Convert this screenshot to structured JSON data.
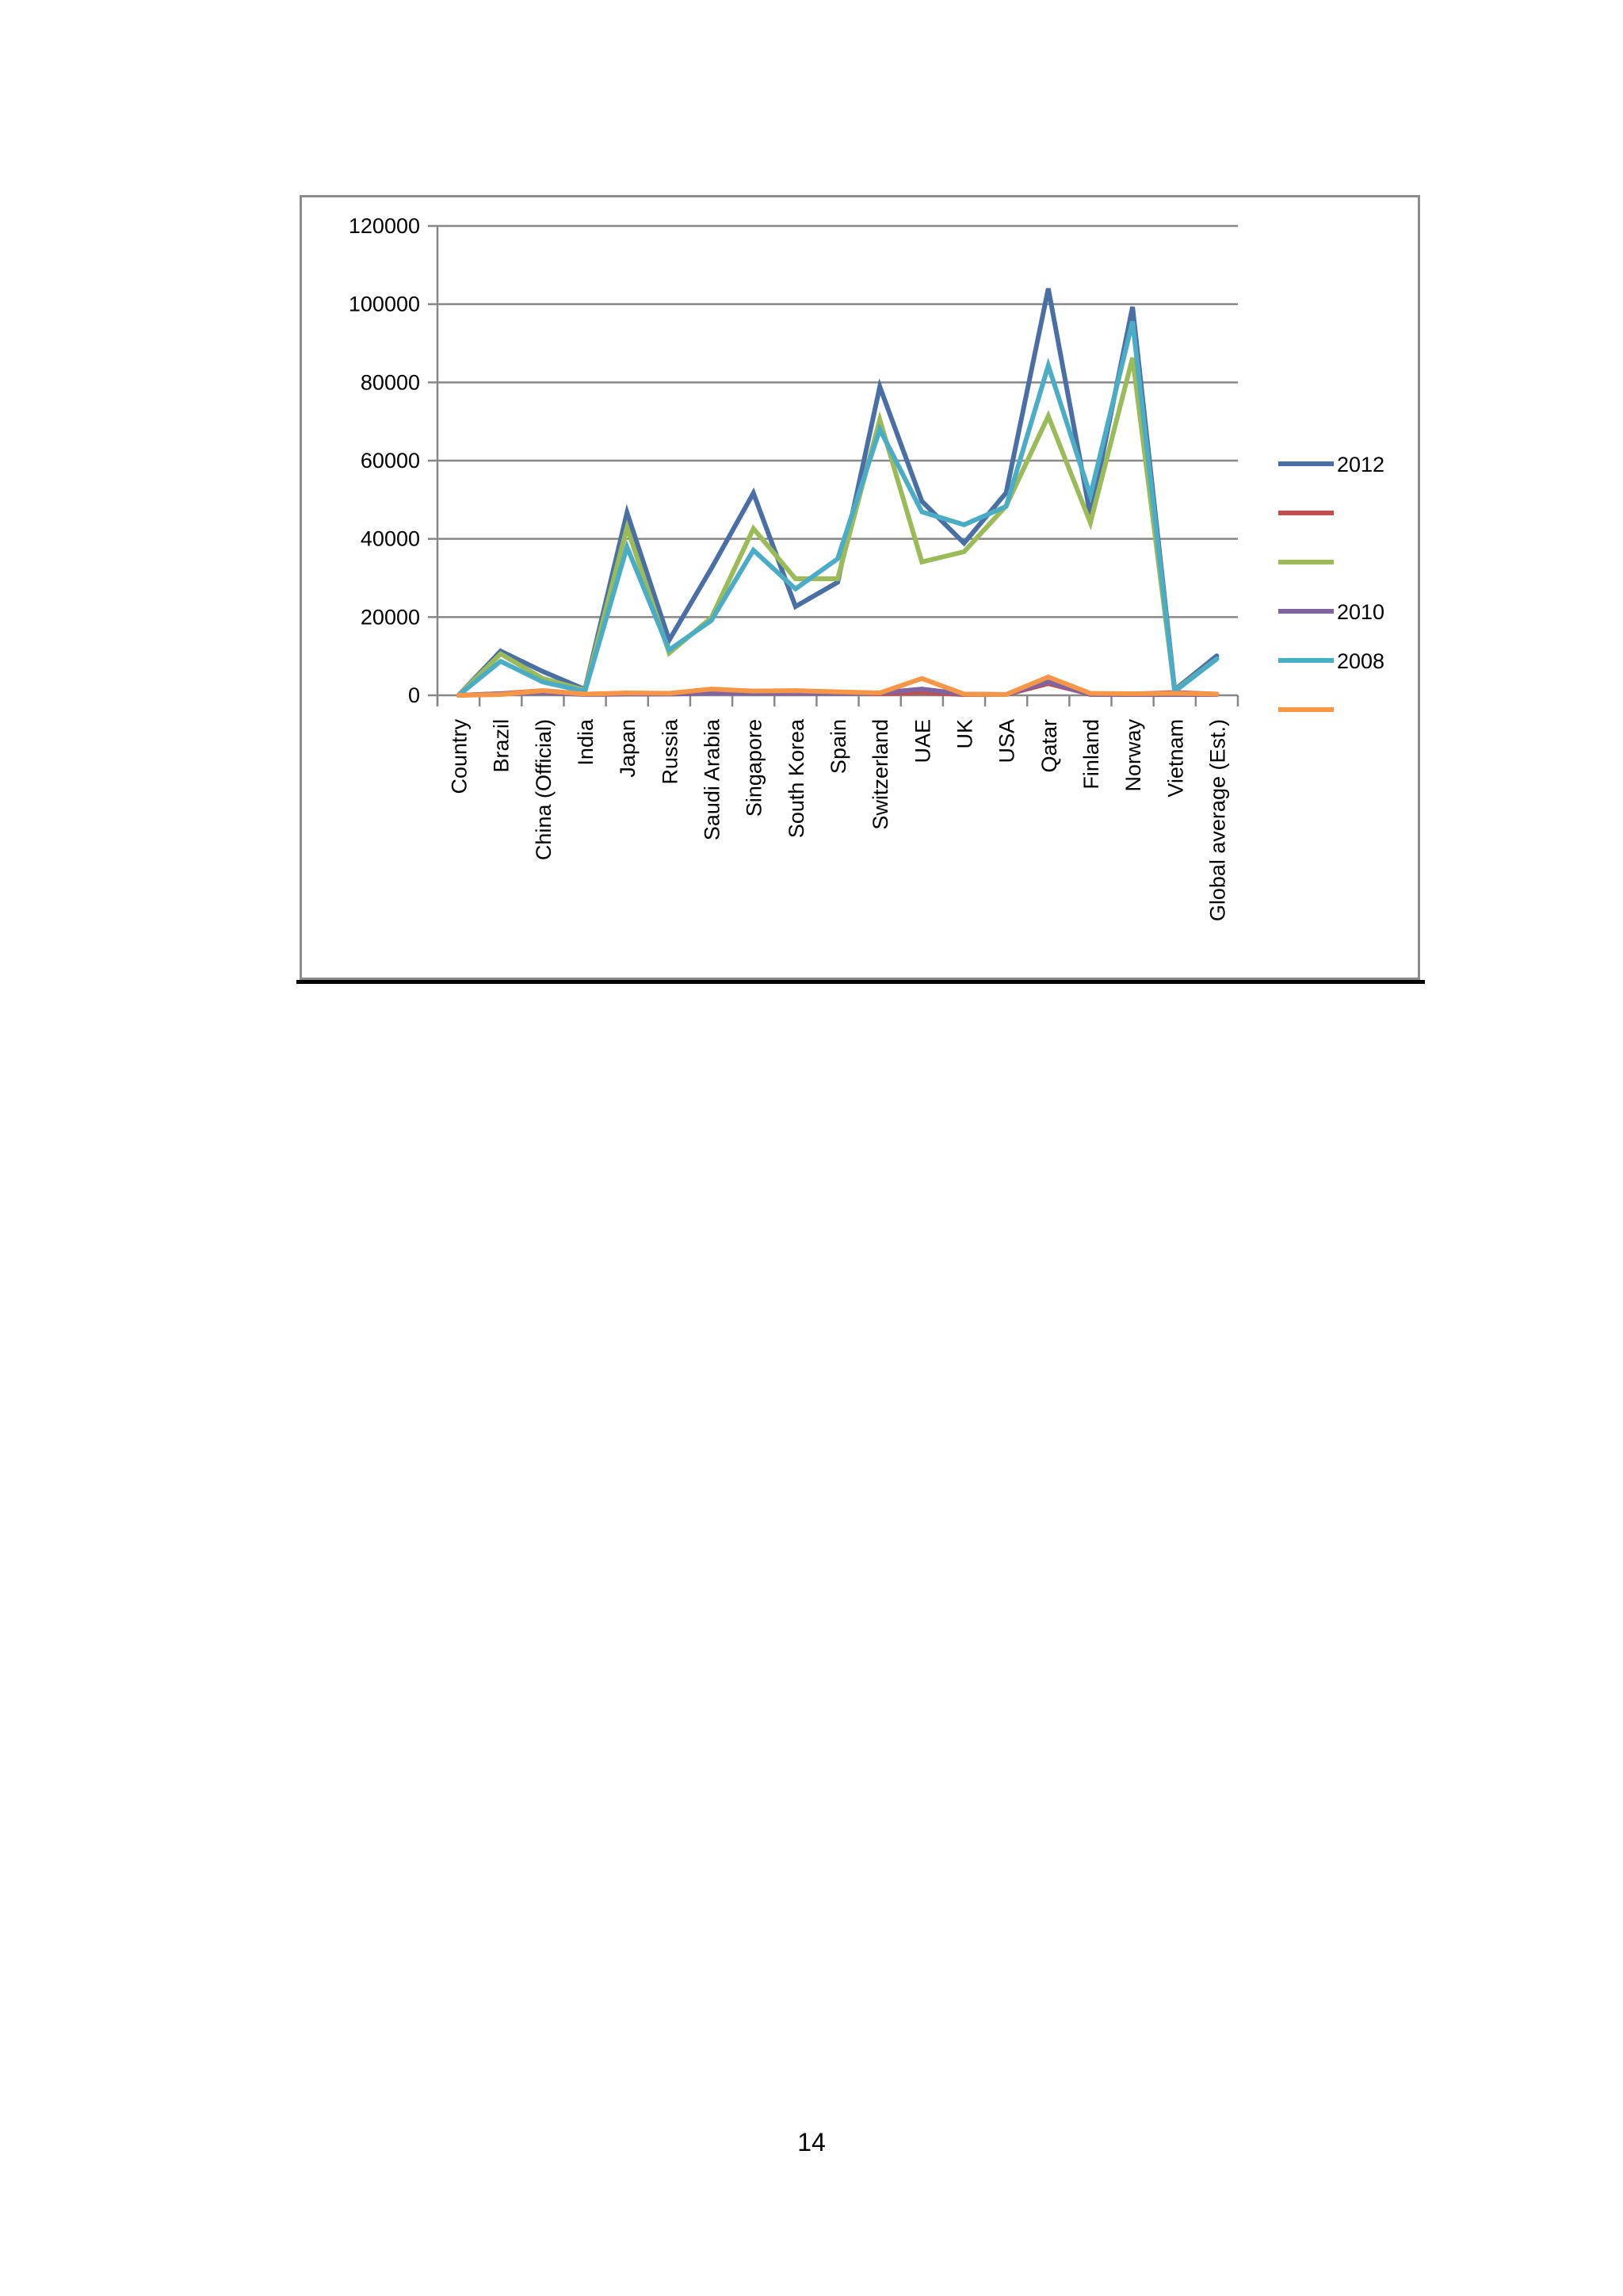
{
  "page": {
    "page_number": "14"
  },
  "chart_data": {
    "type": "line",
    "title": "",
    "xlabel": "",
    "ylabel": "",
    "ylim": [
      0,
      120000
    ],
    "yticks": [
      0,
      20000,
      40000,
      60000,
      80000,
      100000,
      120000
    ],
    "grid": true,
    "legend_position": "right",
    "categories": [
      "Country",
      "Brazil",
      "China (Official)",
      "India",
      "Japan",
      "Russia",
      "Saudi Arabia",
      "Singapore",
      "South Korea",
      "Spain",
      "Switzerland",
      "UAE",
      "UK",
      "USA",
      "Qatar",
      "Finland",
      "Norway",
      "Vietnam",
      "Global average (Est.)"
    ],
    "series": [
      {
        "name": "2012",
        "color": "#4a6fa5",
        "values": [
          0,
          11300,
          6100,
          1500,
          46700,
          14100,
          32400,
          51700,
          22700,
          28900,
          78900,
          49600,
          38900,
          51800,
          104000,
          46000,
          99300,
          1400,
          10100
        ]
      },
      {
        "color": "#c0504d",
        "values": [
          0,
          400,
          1200,
          300,
          300,
          400,
          1000,
          600,
          600,
          700,
          400,
          700,
          200,
          200,
          3000,
          300,
          300,
          700,
          300
        ]
      },
      {
        "color": "#9bbb59",
        "values": [
          0,
          10600,
          4300,
          1300,
          42900,
          10800,
          19800,
          42600,
          29800,
          29800,
          70500,
          34100,
          36700,
          48400,
          71400,
          44100,
          86300,
          1200,
          9300
        ]
      },
      {
        "name": "2010",
        "color": "#8064a2",
        "values": [
          0,
          400,
          700,
          200,
          300,
          300,
          600,
          500,
          500,
          500,
          600,
          1600,
          300,
          200,
          3400,
          200,
          200,
          200,
          200
        ]
      },
      {
        "name": "2008",
        "color": "#4bacc6",
        "values": [
          0,
          8700,
          3400,
          1000,
          37900,
          11600,
          19100,
          37100,
          27200,
          34900,
          68000,
          46900,
          43600,
          48300,
          84300,
          51100,
          95600,
          1000,
          9300
        ]
      },
      {
        "color": "#f79646",
        "values": [
          0,
          200,
          1200,
          300,
          600,
          500,
          1600,
          1100,
          1200,
          900,
          600,
          4300,
          300,
          200,
          4700,
          500,
          400,
          500,
          300
        ]
      }
    ]
  }
}
